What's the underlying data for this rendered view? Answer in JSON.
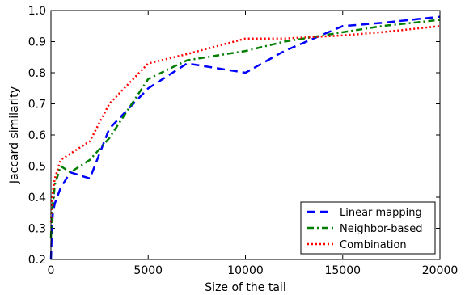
{
  "chart_data": {
    "type": "line",
    "title": "",
    "xlabel": "Size of the tail",
    "ylabel": "Jaccard similarity",
    "xlim": [
      0,
      20000
    ],
    "ylim": [
      0.2,
      1.0
    ],
    "xticks": [
      0,
      5000,
      10000,
      15000,
      20000
    ],
    "yticks": [
      0.2,
      0.3,
      0.4,
      0.5,
      0.6,
      0.7,
      0.8,
      0.9,
      1.0
    ],
    "grid": false,
    "legend_position": "lower-right",
    "series": [
      {
        "name": "Linear mapping",
        "color": "#0000ff",
        "style": "dashed",
        "x": [
          0,
          50,
          100,
          200,
          500,
          1000,
          2000,
          3000,
          5000,
          7000,
          10000,
          12000,
          15000,
          17000,
          20000
        ],
        "y": [
          0.2,
          0.3,
          0.35,
          0.38,
          0.43,
          0.48,
          0.46,
          0.62,
          0.75,
          0.83,
          0.8,
          0.87,
          0.95,
          0.96,
          0.98
        ]
      },
      {
        "name": "Neighbor-based",
        "color": "#007f00",
        "style": "dashdot",
        "x": [
          0,
          50,
          100,
          200,
          500,
          1000,
          2000,
          3000,
          5000,
          7000,
          10000,
          12000,
          15000,
          17000,
          20000
        ],
        "y": [
          0.27,
          0.34,
          0.38,
          0.44,
          0.5,
          0.48,
          0.52,
          0.59,
          0.78,
          0.84,
          0.87,
          0.9,
          0.93,
          0.95,
          0.97
        ]
      },
      {
        "name": "Combination",
        "color": "#ff0000",
        "style": "dotted",
        "x": [
          0,
          50,
          100,
          200,
          500,
          1000,
          2000,
          3000,
          5000,
          7000,
          10000,
          12000,
          15000,
          17000,
          20000
        ],
        "y": [
          0.32,
          0.38,
          0.42,
          0.46,
          0.52,
          0.54,
          0.58,
          0.7,
          0.83,
          0.86,
          0.91,
          0.91,
          0.92,
          0.93,
          0.95
        ]
      }
    ]
  }
}
